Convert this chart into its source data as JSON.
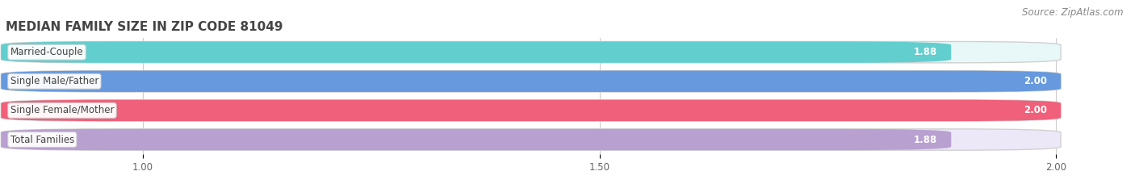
{
  "title": "MEDIAN FAMILY SIZE IN ZIP CODE 81049",
  "source": "Source: ZipAtlas.com",
  "categories": [
    "Married-Couple",
    "Single Male/Father",
    "Single Female/Mother",
    "Total Families"
  ],
  "values": [
    1.88,
    2.0,
    2.0,
    1.88
  ],
  "bar_colors": [
    "#62cece",
    "#6699dd",
    "#f0607a",
    "#b8a0d0"
  ],
  "bar_bg_colors": [
    "#e8f8f8",
    "#e8eef8",
    "#fce8f0",
    "#ede8f8"
  ],
  "value_labels": [
    "1.88",
    "2.00",
    "2.00",
    "1.88"
  ],
  "xlim_data": [
    1.0,
    2.0
  ],
  "xlim_display": [
    0.85,
    2.08
  ],
  "xticks": [
    1.0,
    1.5,
    2.0
  ],
  "xtick_labels": [
    "1.00",
    "1.50",
    "2.00"
  ],
  "bar_height": 0.72,
  "background_color": "#ffffff",
  "plot_bg_color": "#f7f7f7",
  "title_fontsize": 11,
  "label_fontsize": 8.5,
  "value_fontsize": 8.5,
  "tick_fontsize": 8.5,
  "source_fontsize": 8.5
}
